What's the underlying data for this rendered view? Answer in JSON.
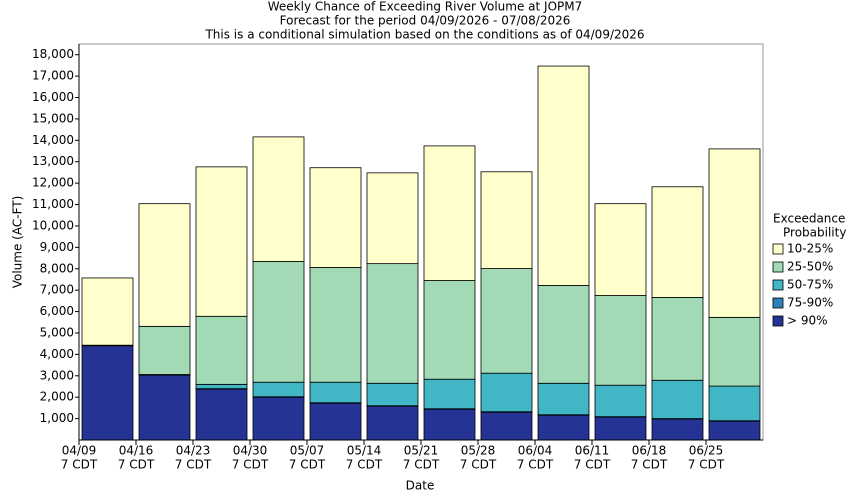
{
  "chart_data": {
    "type": "stacked_bar",
    "title": "Weekly Chance of Exceeding River Volume at JOPM7",
    "subtitle": "Forecast for the period 04/09/2026 - 07/08/2026",
    "subtitle2": "This is a conditional simulation based on the conditions as of 04/09/2026",
    "x_label": "Date",
    "y_label": "Volume (AC-FT)",
    "legend_title": [
      "Exceedance",
      "Probability"
    ],
    "legend_position": "right",
    "categories": [
      "04/09",
      "04/16",
      "04/23",
      "04/30",
      "05/07",
      "05/14",
      "05/21",
      "05/28",
      "06/04",
      "06/11",
      "06/18",
      "06/25"
    ],
    "x_sublabels": [
      "7 CDT",
      "7 CDT",
      "7 CDT",
      "7 CDT",
      "7 CDT",
      "7 CDT",
      "7 CDT",
      "7 CDT",
      "7 CDT",
      "7 CDT",
      "7 CDT",
      "7 CDT"
    ],
    "series": [
      {
        "name": "> 90%",
        "color": "#253494",
        "values": [
          4400,
          3030,
          2380,
          2000,
          1720,
          1580,
          1440,
          1300,
          1160,
          1070,
          980,
          880
        ]
      },
      {
        "name": "75-90%",
        "color": "#2c7fb8",
        "values": [
          20,
          20,
          20,
          20,
          20,
          20,
          20,
          20,
          20,
          20,
          20,
          20
        ]
      },
      {
        "name": "50-75%",
        "color": "#41b6c4",
        "values": [
          0,
          10,
          200,
          680,
          960,
          1050,
          1380,
          1800,
          1470,
          1470,
          1790,
          1620
        ]
      },
      {
        "name": "25-50%",
        "color": "#a1dab4",
        "values": [
          10,
          2250,
          3180,
          5640,
          5360,
          5590,
          4610,
          4890,
          4570,
          4190,
          3870,
          3210
        ]
      },
      {
        "name": "10-25%",
        "color": "#ffffcc",
        "values": [
          3140,
          5730,
          6980,
          5820,
          4660,
          4240,
          6290,
          4520,
          10250,
          4290,
          5170,
          7870
        ]
      }
    ],
    "ylim": [
      0,
      18500
    ],
    "yticks": [
      {
        "value": 1000,
        "label": "1,000"
      },
      {
        "value": 2000,
        "label": "2,000"
      },
      {
        "value": 3000,
        "label": "3,000"
      },
      {
        "value": 4000,
        "label": "4,000"
      },
      {
        "value": 5000,
        "label": "5,000"
      },
      {
        "value": 6000,
        "label": "6,000"
      },
      {
        "value": 7000,
        "label": "7,000"
      },
      {
        "value": 8000,
        "label": "8,000"
      },
      {
        "value": 9000,
        "label": "9,000"
      },
      {
        "value": 10000,
        "label": "10,000"
      },
      {
        "value": 11000,
        "label": "11,000"
      },
      {
        "value": 12000,
        "label": "12,000"
      },
      {
        "value": 13000,
        "label": "13,000"
      },
      {
        "value": 14000,
        "label": "14,000"
      },
      {
        "value": 15000,
        "label": "15,000"
      },
      {
        "value": 16000,
        "label": "16,000"
      },
      {
        "value": 17000,
        "label": "17,000"
      },
      {
        "value": 18000,
        "label": "18,000"
      }
    ],
    "grid": false
  }
}
